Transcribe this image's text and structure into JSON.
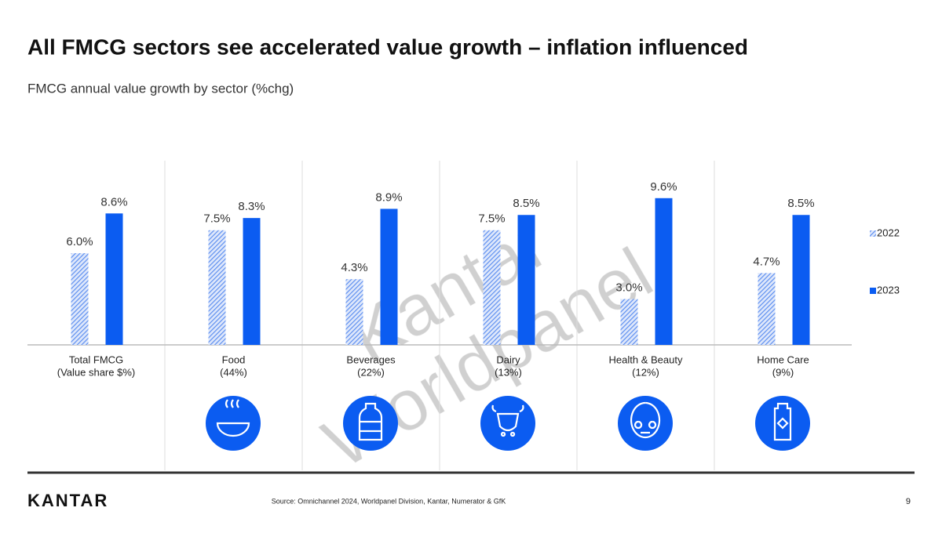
{
  "chart_data": {
    "type": "bar",
    "title": "All FMCG sectors see accelerated value growth – inflation influenced",
    "subtitle": "FMCG annual value growth by sector (%chg)",
    "categories": [
      "Total FMCG",
      "Food",
      "Beverages",
      "Dairy",
      "Health & Beauty",
      "Home Care"
    ],
    "category_notes": [
      "(Value share $%)",
      "(44%)",
      "(22%)",
      "(13%)",
      "(12%)",
      "(9%)"
    ],
    "series": [
      {
        "name": "2022",
        "color": "#6f9bf0",
        "pattern": "hatch",
        "values": [
          6.0,
          7.5,
          4.3,
          7.5,
          3.0,
          4.7
        ],
        "value_labels": [
          "6.0%",
          "7.5%",
          "4.3%",
          "7.5%",
          "3.0%",
          "4.7%"
        ]
      },
      {
        "name": "2023",
        "color": "#0b5cf1",
        "pattern": "solid",
        "values": [
          8.6,
          8.3,
          8.9,
          8.5,
          9.6,
          8.5
        ],
        "value_labels": [
          "8.6%",
          "8.3%",
          "8.9%",
          "8.5%",
          "9.6%",
          "8.5%"
        ]
      }
    ],
    "ylim": [
      0,
      10
    ],
    "legend": "right",
    "watermark": [
      "Kantar",
      "Worldpanel"
    ]
  },
  "footer": {
    "logo": "KANTAR",
    "source": "Source: Omnichannel 2024, Worldpanel Division, Kantar, Numerator & GfK",
    "page": "9"
  }
}
